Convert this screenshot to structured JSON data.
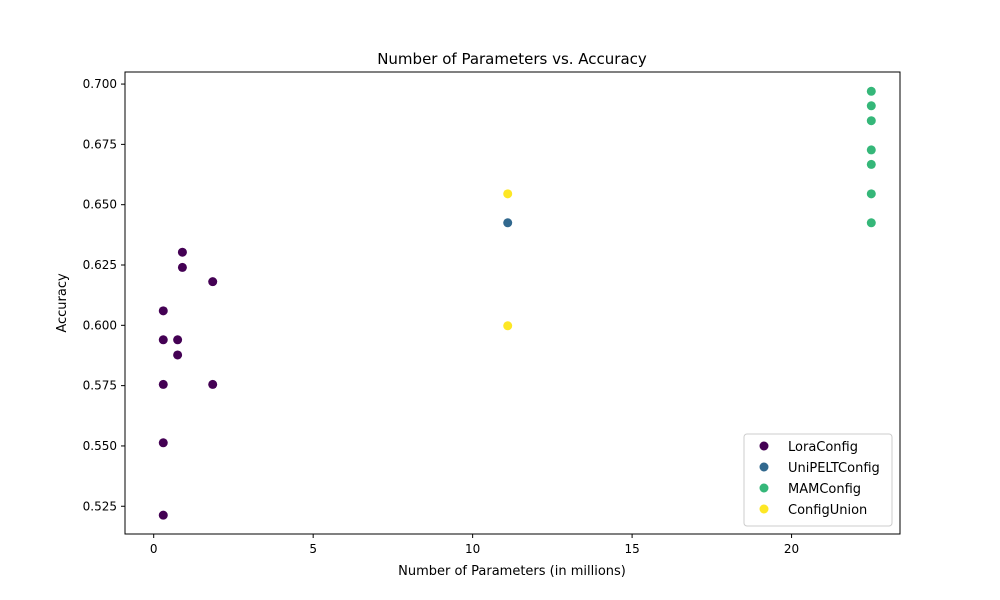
{
  "chart_data": {
    "type": "scatter",
    "title": "Number of Parameters vs. Accuracy",
    "xlabel": "Number of Parameters (in millions)",
    "ylabel": "Accuracy",
    "xlim": [
      -0.9,
      23.4
    ],
    "ylim": [
      0.5135,
      0.705
    ],
    "xticks": [
      0,
      5,
      10,
      15,
      20
    ],
    "yticks": [
      0.525,
      0.55,
      0.575,
      0.6,
      0.625,
      0.65,
      0.675,
      0.7
    ],
    "ytick_labels": [
      "0.525",
      "0.550",
      "0.575",
      "0.600",
      "0.625",
      "0.650",
      "0.675",
      "0.700"
    ],
    "grid": false,
    "legend_position": "lower-right",
    "series": [
      {
        "name": "LoraConfig",
        "color": "#440154",
        "points": [
          {
            "x": 0.3,
            "y": 0.606
          },
          {
            "x": 0.3,
            "y": 0.594
          },
          {
            "x": 0.3,
            "y": 0.5755
          },
          {
            "x": 0.3,
            "y": 0.5513
          },
          {
            "x": 0.3,
            "y": 0.5213
          },
          {
            "x": 0.75,
            "y": 0.594
          },
          {
            "x": 0.75,
            "y": 0.5877
          },
          {
            "x": 0.9,
            "y": 0.6303
          },
          {
            "x": 0.9,
            "y": 0.624
          },
          {
            "x": 1.85,
            "y": 0.6181
          },
          {
            "x": 1.85,
            "y": 0.5755
          }
        ]
      },
      {
        "name": "UniPELTConfig",
        "color": "#31688e",
        "points": [
          {
            "x": 11.1,
            "y": 0.6425
          }
        ]
      },
      {
        "name": "MAMConfig",
        "color": "#35b779",
        "points": [
          {
            "x": 22.5,
            "y": 0.697
          },
          {
            "x": 22.5,
            "y": 0.691
          },
          {
            "x": 22.5,
            "y": 0.6848
          },
          {
            "x": 22.5,
            "y": 0.6727
          },
          {
            "x": 22.5,
            "y": 0.6667
          },
          {
            "x": 22.5,
            "y": 0.6545
          },
          {
            "x": 22.5,
            "y": 0.6425
          }
        ]
      },
      {
        "name": "ConfigUnion",
        "color": "#fde725",
        "points": [
          {
            "x": 11.1,
            "y": 0.6545
          },
          {
            "x": 11.1,
            "y": 0.5998
          }
        ]
      }
    ]
  }
}
